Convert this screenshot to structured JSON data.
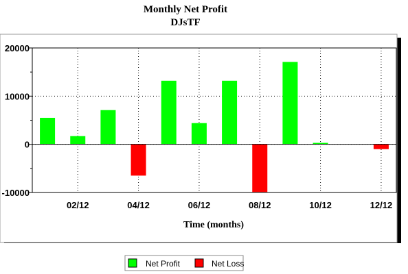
{
  "chart_data": {
    "type": "bar",
    "title": "Monthly Net Profit",
    "subtitle": "DJsTF",
    "xlabel": "Time (months)",
    "ylabel": "",
    "ylim": [
      -10000,
      20000
    ],
    "yticks": [
      -10000,
      0,
      10000,
      20000
    ],
    "ytick_labels": [
      "-10000",
      "0",
      "10000",
      "20000"
    ],
    "x_tick_labels": [
      "02/12",
      "04/12",
      "06/12",
      "08/12",
      "10/12",
      "12/12"
    ],
    "grid": true,
    "legend_placement": "bottom-center",
    "series": [
      {
        "name": "Net Profit",
        "color": "#00ff00"
      },
      {
        "name": "Net Loss",
        "color": "#ff0000"
      }
    ],
    "bars": [
      {
        "month": "01/12",
        "value": 5500
      },
      {
        "month": "02/12",
        "value": 1700
      },
      {
        "month": "03/12",
        "value": 7100
      },
      {
        "month": "04/12",
        "value": -6500
      },
      {
        "month": "05/12",
        "value": 13200
      },
      {
        "month": "06/12",
        "value": 4400
      },
      {
        "month": "07/12",
        "value": 13200
      },
      {
        "month": "08/12",
        "value": -9900
      },
      {
        "month": "09/12",
        "value": 17100
      },
      {
        "month": "10/12",
        "value": 300
      },
      {
        "month": "11/12",
        "value": 0
      },
      {
        "month": "12/12",
        "value": -1000
      }
    ]
  }
}
